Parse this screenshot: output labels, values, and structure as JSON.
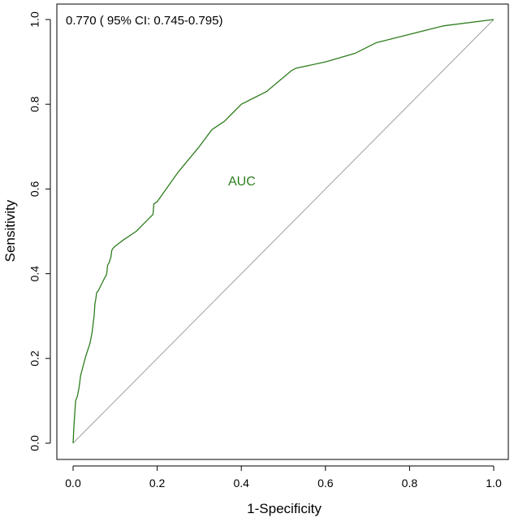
{
  "chart_data": {
    "type": "line",
    "title": "",
    "xlabel": "1-Specificity",
    "ylabel": "Sensitivity",
    "xlim": [
      0,
      1
    ],
    "ylim": [
      0,
      1
    ],
    "xticks": [
      "0.0",
      "0.2",
      "0.4",
      "0.6",
      "0.8",
      "1.0"
    ],
    "yticks": [
      "0.0",
      "0.2",
      "0.4",
      "0.6",
      "0.8",
      "1.0"
    ],
    "annotation": "0.770 ( 95% CI: 0.745-0.795)",
    "curve_label": "AUC",
    "colors": {
      "roc": "#2e7d1e",
      "diagonal": "#9e9e9e",
      "axis": "#000000"
    },
    "series": [
      {
        "name": "ROC",
        "x": [
          0.0,
          0.002,
          0.004,
          0.006,
          0.01,
          0.014,
          0.018,
          0.022,
          0.026,
          0.03,
          0.035,
          0.04,
          0.045,
          0.048,
          0.05,
          0.052,
          0.054,
          0.056,
          0.06,
          0.065,
          0.07,
          0.075,
          0.078,
          0.08,
          0.082,
          0.085,
          0.087,
          0.09,
          0.092,
          0.095,
          0.1,
          0.12,
          0.15,
          0.17,
          0.19,
          0.192,
          0.2,
          0.25,
          0.3,
          0.33,
          0.36,
          0.38,
          0.4,
          0.43,
          0.46,
          0.49,
          0.52,
          0.53,
          0.6,
          0.67,
          0.72,
          0.8,
          0.88,
          1.0
        ],
        "y": [
          0.0,
          0.04,
          0.07,
          0.1,
          0.11,
          0.13,
          0.16,
          0.175,
          0.19,
          0.205,
          0.22,
          0.235,
          0.26,
          0.285,
          0.3,
          0.33,
          0.34,
          0.355,
          0.36,
          0.37,
          0.38,
          0.39,
          0.395,
          0.4,
          0.42,
          0.425,
          0.43,
          0.44,
          0.455,
          0.46,
          0.465,
          0.48,
          0.5,
          0.52,
          0.54,
          0.565,
          0.57,
          0.64,
          0.7,
          0.74,
          0.76,
          0.78,
          0.8,
          0.815,
          0.83,
          0.855,
          0.88,
          0.885,
          0.9,
          0.92,
          0.945,
          0.965,
          0.985,
          1.0
        ]
      }
    ]
  }
}
